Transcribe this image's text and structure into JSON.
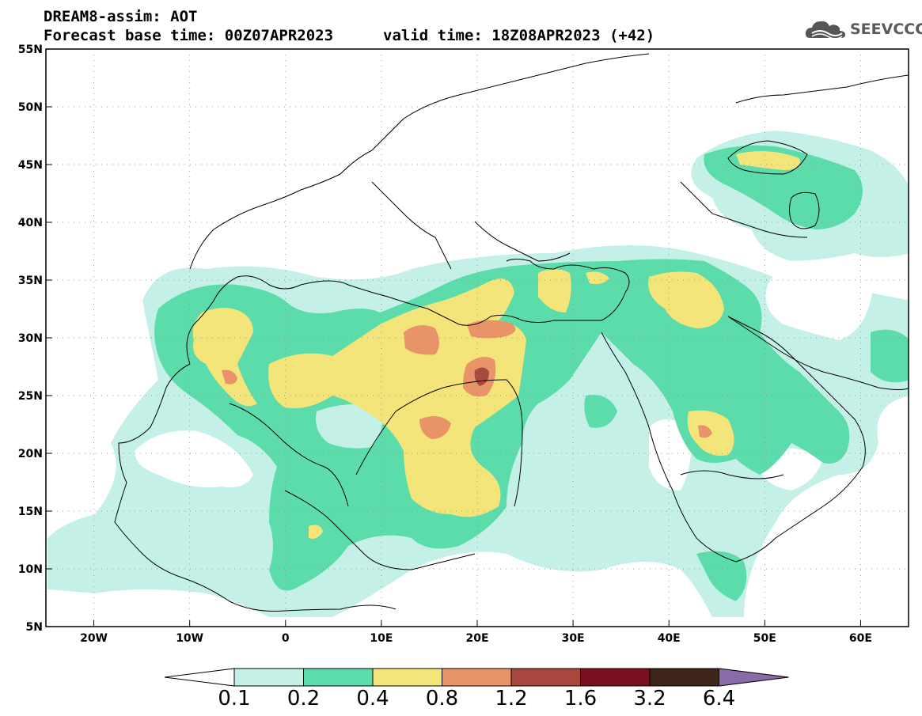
{
  "header": {
    "title_line1": "DREAM8-assim: AOT",
    "base_time": "Forecast base time: 00Z07APR2023",
    "valid_time": "valid time: 18Z08APR2023 (+42)",
    "logo_text": "SEEVCCC",
    "logo_icon": "cloud-icon"
  },
  "map": {
    "lat_labels": [
      "55N",
      "50N",
      "45N",
      "40N",
      "35N",
      "30N",
      "25N",
      "20N",
      "15N",
      "10N",
      "5N"
    ],
    "lon_labels": [
      "20W",
      "10W",
      "0",
      "10E",
      "20E",
      "30E",
      "40E",
      "50E",
      "60E"
    ],
    "lat_range": [
      5,
      55
    ],
    "lon_range": [
      -25,
      65
    ],
    "grid": "dotted"
  },
  "colorbar": {
    "labels": [
      "0.1",
      "0.2",
      "0.4",
      "0.8",
      "1.2",
      "1.6",
      "3.2",
      "6.4"
    ],
    "colors": [
      "#ffffff",
      "#c5f0e8",
      "#5ddcab",
      "#f3e57a",
      "#e89368",
      "#a8483e",
      "#7a0f22",
      "#3e2519",
      "#8a6aa8"
    ]
  }
}
